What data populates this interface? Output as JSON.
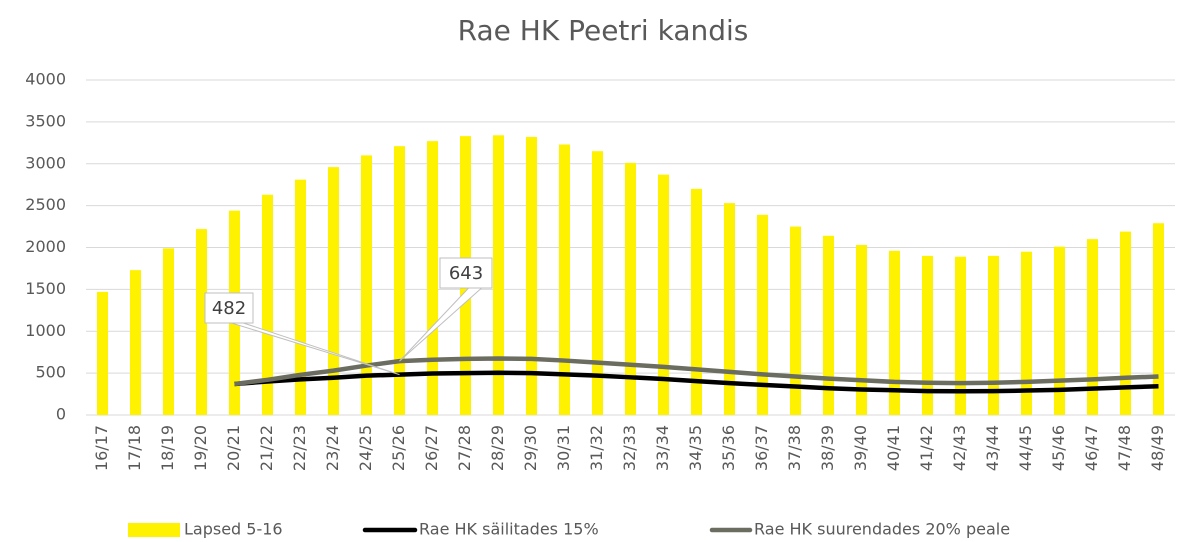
{
  "chart_data": {
    "type": "bar_line",
    "title": "Rae HK Peetri kandis",
    "categories": [
      "16/17",
      "17/18",
      "18/19",
      "19/20",
      "20/21",
      "21/22",
      "22/23",
      "23/24",
      "24/25",
      "25/26",
      "26/27",
      "27/28",
      "28/29",
      "29/30",
      "30/31",
      "31/32",
      "32/33",
      "33/34",
      "34/35",
      "35/36",
      "36/37",
      "37/38",
      "38/39",
      "39/40",
      "40/41",
      "41/42",
      "42/43",
      "43/44",
      "44/45",
      "45/46",
      "46/47",
      "47/48",
      "48/49"
    ],
    "series": [
      {
        "name": "Lapsed 5-16",
        "type": "bar",
        "color": "#fff200",
        "values": [
          1470,
          1730,
          1990,
          2220,
          2440,
          2630,
          2810,
          2960,
          3100,
          3210,
          3270,
          3330,
          3340,
          3320,
          3230,
          3150,
          3010,
          2870,
          2700,
          2530,
          2390,
          2250,
          2140,
          2030,
          1960,
          1900,
          1890,
          1900,
          1950,
          2010,
          2100,
          2190,
          2290
        ]
      },
      {
        "name": "Rae HK säilitades 15%",
        "type": "line",
        "color": "#000000",
        "values": [
          null,
          null,
          null,
          null,
          370,
          400,
          425,
          445,
          470,
          482,
          495,
          500,
          505,
          500,
          485,
          470,
          450,
          430,
          405,
          380,
          360,
          340,
          320,
          305,
          295,
          285,
          283,
          285,
          292,
          300,
          315,
          330,
          343
        ]
      },
      {
        "name": "Rae HK suurendades 20% peale",
        "type": "line",
        "color": "#6b6d61",
        "values": [
          null,
          null,
          null,
          null,
          370,
          420,
          480,
          530,
          590,
          643,
          660,
          670,
          675,
          670,
          650,
          625,
          600,
          575,
          545,
          515,
          485,
          460,
          435,
          415,
          395,
          385,
          380,
          385,
          395,
          410,
          425,
          445,
          460
        ]
      }
    ],
    "ylim": [
      0,
      4000
    ],
    "yticks": [
      0,
      500,
      1000,
      1500,
      2000,
      2500,
      3000,
      3500,
      4000
    ],
    "grid": true,
    "legend": "bottom"
  }
}
